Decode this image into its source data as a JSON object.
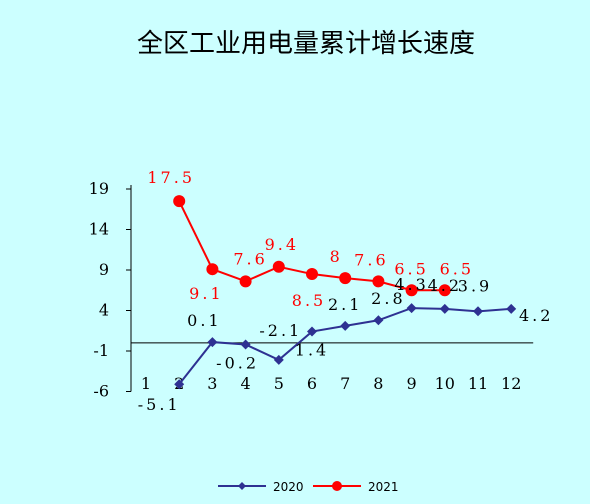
{
  "chart_data": {
    "type": "line",
    "title": "全区工业用电量累计增长速度",
    "xlabel": "",
    "ylabel": "",
    "categories": [
      "1",
      "2",
      "3",
      "4",
      "5",
      "6",
      "7",
      "8",
      "9",
      "10",
      "11",
      "12"
    ],
    "y_ticks": [
      "19",
      "14",
      "9",
      "4",
      "-1",
      "-6"
    ],
    "ylim": [
      -6,
      19
    ],
    "grid": false,
    "legend_position": "bottom",
    "series": [
      {
        "name": "2020",
        "color": "#2e3192",
        "marker": "diamond",
        "values": [
          null,
          -5.1,
          0.1,
          -0.2,
          -2.1,
          1.4,
          2.1,
          2.8,
          4.3,
          4.2,
          3.9,
          4.2
        ],
        "labels": [
          "",
          "-5.1",
          "0.1",
          "-0.2",
          "-2.1",
          "1.4",
          "2.1",
          "2.8",
          "4.3",
          "4.2",
          "3.9",
          "4.2"
        ]
      },
      {
        "name": "2021",
        "color": "#ff0000",
        "marker": "circle",
        "values": [
          null,
          17.5,
          9.1,
          7.6,
          9.4,
          8.5,
          8,
          7.6,
          6.5,
          6.5,
          null,
          null
        ],
        "labels": [
          "",
          "17.5",
          "9.1",
          "7.6",
          "9.4",
          "8.5",
          "8",
          "7.6",
          "6.5",
          "6.5",
          "",
          ""
        ]
      }
    ]
  }
}
